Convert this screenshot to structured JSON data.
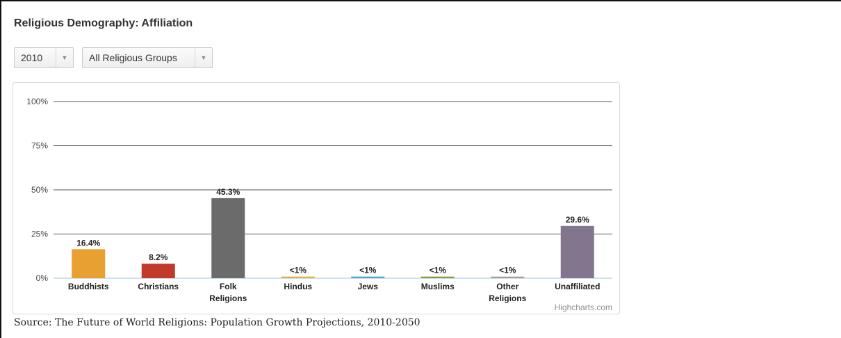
{
  "title": "Religious Demography: Affiliation",
  "controls": {
    "year_select": {
      "value": "2010"
    },
    "group_select": {
      "value": "All Religious Groups"
    }
  },
  "credit": "Highcharts.com",
  "source": "Source: The Future of World Religions: Population Growth Projections, 2010-2050",
  "chart_data": {
    "type": "bar",
    "categories": [
      "Buddhists",
      "Christians",
      "Folk Religions",
      "Hindus",
      "Jews",
      "Muslims",
      "Other Religions",
      "Unaffiliated"
    ],
    "category_lines": [
      [
        "Buddhists"
      ],
      [
        "Christians"
      ],
      [
        "Folk",
        "Religions"
      ],
      [
        "Hindus"
      ],
      [
        "Jews"
      ],
      [
        "Muslims"
      ],
      [
        "Other",
        "Religions"
      ],
      [
        "Unaffiliated"
      ]
    ],
    "values": [
      16.4,
      8.2,
      45.3,
      0.9,
      0.9,
      0.9,
      0.9,
      29.6
    ],
    "data_labels": [
      "16.4%",
      "8.2%",
      "45.3%",
      "<1%",
      "<1%",
      "<1%",
      "<1%",
      "29.6%"
    ],
    "colors": [
      "#e8a030",
      "#c0392b",
      "#6b6b6b",
      "#e0b040",
      "#4aa3c9",
      "#7f9b3a",
      "#a89f8e",
      "#82768f"
    ],
    "ylim": [
      0,
      100
    ],
    "yticks": [
      0,
      25,
      50,
      75,
      100
    ],
    "ytick_labels": [
      "0%",
      "25%",
      "50%",
      "75%",
      "100%"
    ],
    "grid": true,
    "legend": "none"
  }
}
